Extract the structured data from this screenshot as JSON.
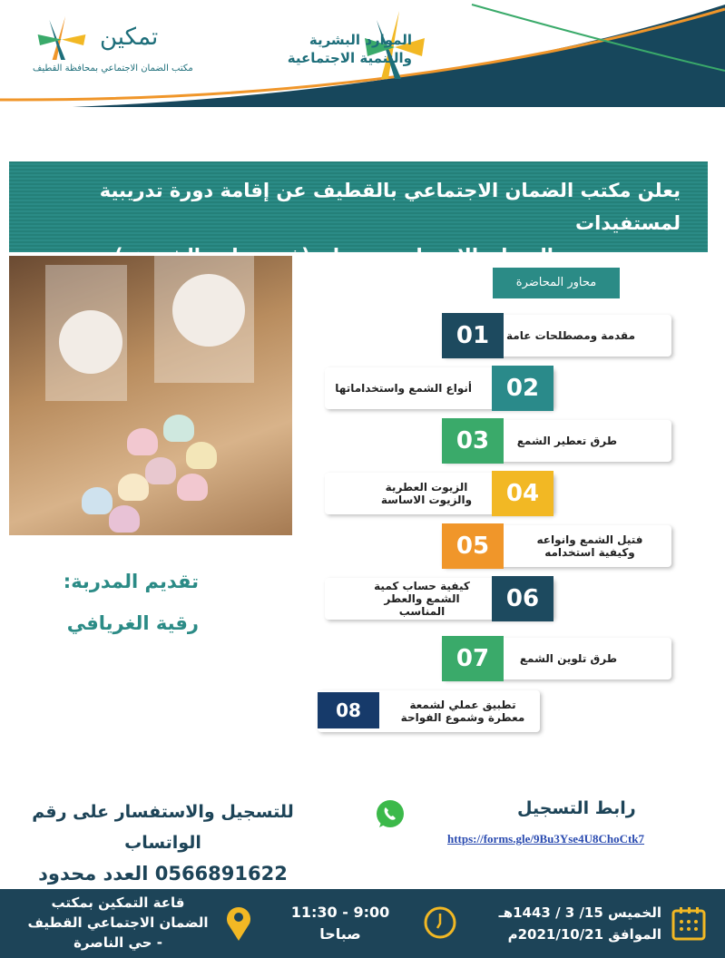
{
  "header": {
    "ministry_logo_line1": "الموارد البشرية",
    "ministry_logo_line2": "والتنمية الاجتماعية",
    "tamkeen_logo": "تمكين",
    "tamkeen_subtitle": "مكتب الضمان الاجتماعي بمحافظة القطيف"
  },
  "announcement": {
    "line1": "يعلن مكتب الضمان الاجتماعي بالقطيف عن إقامة دورة تدريبية لمستفيدات",
    "line2": "الضمان الاجتماعي بعنوان (فن صناعة الشموع )"
  },
  "topics": {
    "title": "محاور المحاضرة",
    "items": [
      {
        "num": "01",
        "label": "مقدمة ومصطلحات عامة",
        "color": "#1d4a5f"
      },
      {
        "num": "02",
        "label": "أنواع الشمع واستخداماتها",
        "color": "#2a8a8a"
      },
      {
        "num": "03",
        "label": "طرق تعطير الشمع",
        "color": "#3aaa6a"
      },
      {
        "num": "04",
        "label": "الزيوت العطرية والزيوت الاساسة",
        "color": "#f2b824"
      },
      {
        "num": "05",
        "label": "فتيل الشمع وانواعه وكيفية استخدامه",
        "color": "#f0962a"
      },
      {
        "num": "06",
        "label": "كيفية حساب كمية الشمع والعطر المناسب",
        "color": "#1d4a5f"
      },
      {
        "num": "07",
        "label": "طرق تلوين الشمع",
        "color": "#3aaa6a"
      },
      {
        "num": "08",
        "label": "تطبيق عملي لشمعة معطرة وشموع الفواحة",
        "color": "#163a6a"
      }
    ]
  },
  "trainer": {
    "label": "تقديم المدربة:",
    "name": "رقية الغريافي"
  },
  "contact": {
    "whatsapp_text": "للتسجيل والاستفسار على رقم الواتساب",
    "phone_line": "0566891622 العدد محدود",
    "registration_label": "رابط التسجيل",
    "registration_link": "https://forms.gle/9Bu3Yse4U8ChoCtk7"
  },
  "footer": {
    "date_line1": "الخميس 15/ 3 / 1443هـ",
    "date_line2": "الموافق 2021/10/21م",
    "time_line1": "11:30 - 9:00",
    "time_line2": "صباحا",
    "location_line1": "قاعة التمكين بمكتب",
    "location_line2": "الضمان الاجتماعي القطيف",
    "location_line3": "- حي الناصرة"
  },
  "colors": {
    "teal": "#2b8b86",
    "navy": "#1d4458",
    "orange": "#f0962a",
    "gold": "#f2b824"
  }
}
